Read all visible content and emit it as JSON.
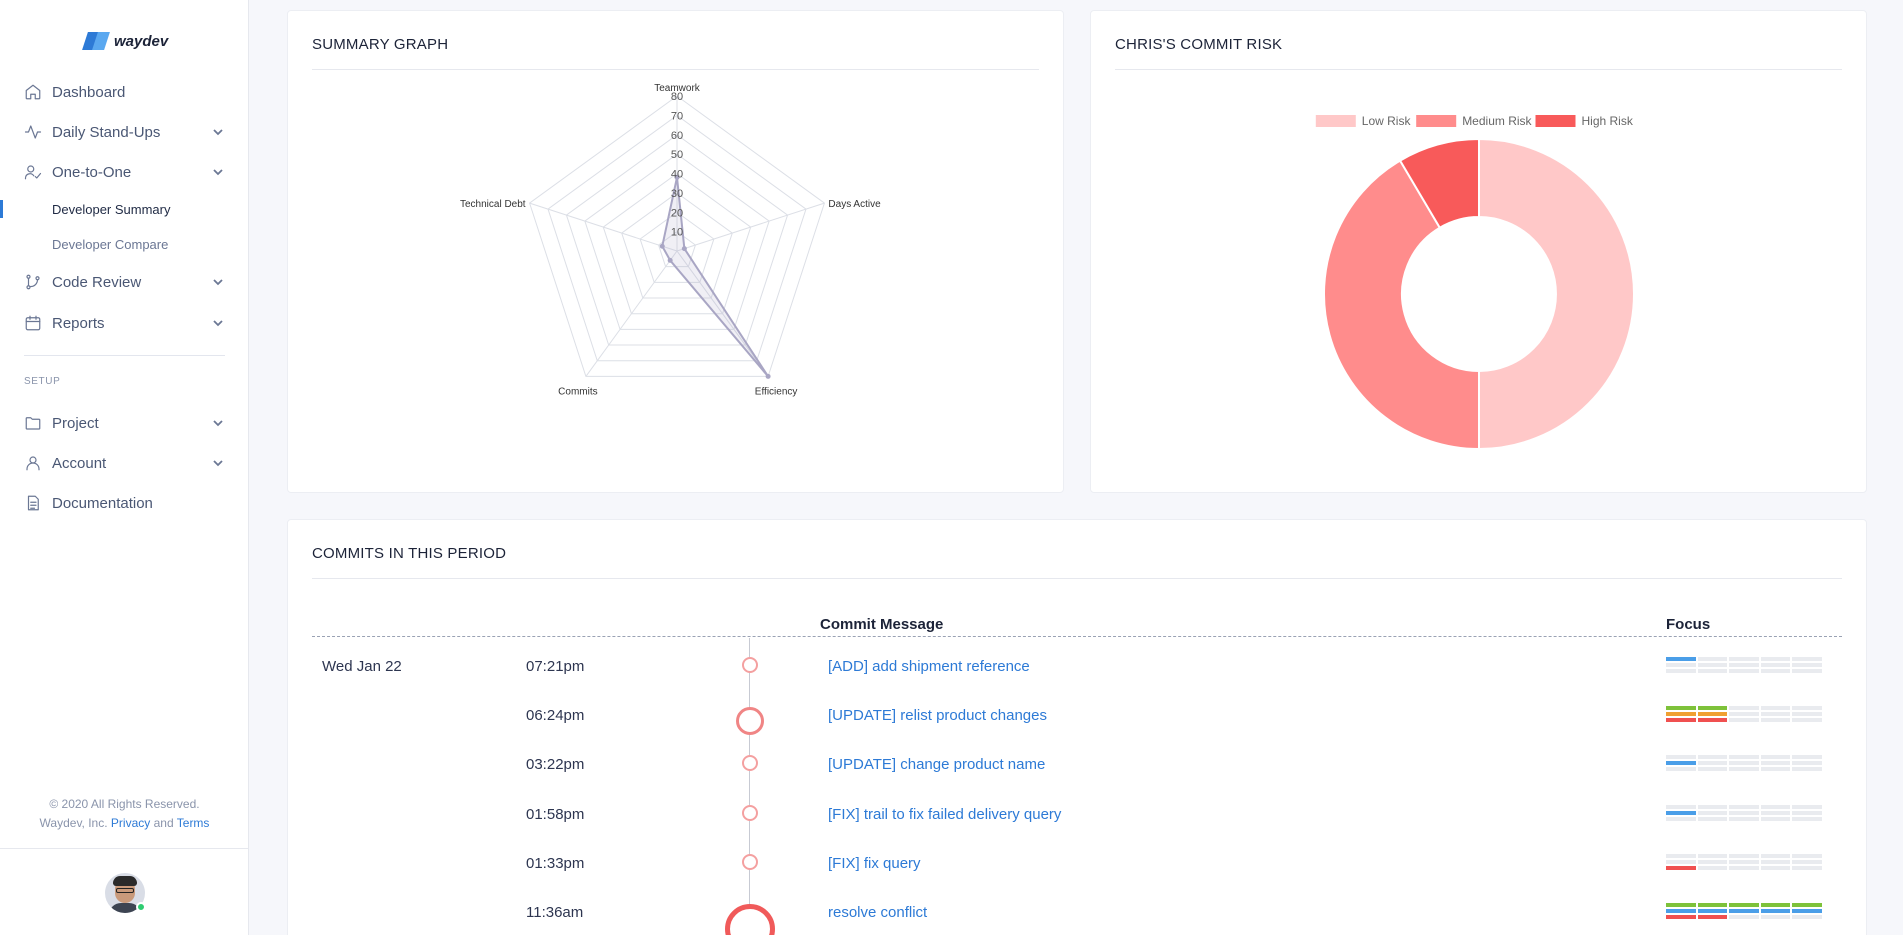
{
  "sidebar": {
    "logo_text": "waydev",
    "nav": [
      {
        "label": "Dashboard"
      },
      {
        "label": "Daily Stand-Ups"
      },
      {
        "label": "One-to-One"
      },
      {
        "label": "Code Review"
      },
      {
        "label": "Reports"
      }
    ],
    "one_to_one_sub": [
      "Developer Summary",
      "Developer Compare"
    ],
    "setup_label": "SETUP",
    "setup_nav": [
      {
        "label": "Project"
      },
      {
        "label": "Account"
      },
      {
        "label": "Documentation"
      }
    ],
    "footer": {
      "line1": "© 2020 All Rights Reserved.",
      "line2_prefix": "Waydev, Inc.",
      "privacy": "Privacy",
      "and": "and",
      "terms": "Terms"
    }
  },
  "summary": {
    "title": "SUMMARY GRAPH",
    "chart_data": {
      "type": "radar",
      "axes": [
        "Teamwork",
        "Days Active",
        "Efficiency",
        "Commits",
        "Technical Debt"
      ],
      "ticks": [
        10,
        20,
        30,
        40,
        50,
        60,
        70,
        80
      ],
      "range": [
        0,
        80
      ],
      "values": [
        38,
        4,
        80,
        6,
        8
      ]
    }
  },
  "risk": {
    "title": "CHRIS'S COMMIT RISK",
    "chart_data": {
      "type": "pie",
      "labels": [
        "Low Risk",
        "Medium Risk",
        "High Risk"
      ],
      "values": [
        50,
        41.5,
        8.5
      ],
      "colors": [
        "#ffc8c8",
        "#ff8c8c",
        "#f85a5a"
      ],
      "legend": "top"
    }
  },
  "commits": {
    "title": "COMMITS IN THIS PERIOD",
    "col_message": "Commit Message",
    "col_focus": "Focus",
    "rows": [
      {
        "date": "Wed Jan 22",
        "time": "07:21pm",
        "message": "[ADD] add shipment reference",
        "dot": "small",
        "focus": [
          [
            "blue",
            0,
            0,
            0,
            0
          ],
          [
            0,
            0,
            0,
            0,
            0
          ],
          [
            0,
            0,
            0,
            0,
            0
          ]
        ]
      },
      {
        "date": "",
        "time": "06:24pm",
        "message": "[UPDATE] relist product changes",
        "dot": "medium",
        "focus": [
          [
            "green",
            "green",
            0,
            0,
            0
          ],
          [
            "orange",
            "orange",
            0,
            0,
            0
          ],
          [
            "red",
            "red",
            0,
            0,
            0
          ]
        ]
      },
      {
        "date": "",
        "time": "03:22pm",
        "message": "[UPDATE] change product name",
        "dot": "small",
        "focus": [
          [
            0,
            0,
            0,
            0,
            0
          ],
          [
            "blue",
            0,
            0,
            0,
            0
          ],
          [
            0,
            0,
            0,
            0,
            0
          ]
        ]
      },
      {
        "date": "",
        "time": "01:58pm",
        "message": "[FIX] trail to fix failed delivery query",
        "dot": "small",
        "focus": [
          [
            0,
            0,
            0,
            0,
            0
          ],
          [
            "blue",
            0,
            0,
            0,
            0
          ],
          [
            0,
            0,
            0,
            0,
            0
          ]
        ]
      },
      {
        "date": "",
        "time": "01:33pm",
        "message": "[FIX] fix query",
        "dot": "small",
        "focus": [
          [
            0,
            0,
            0,
            0,
            0
          ],
          [
            0,
            0,
            0,
            0,
            0
          ],
          [
            "red",
            0,
            0,
            0,
            0
          ]
        ]
      },
      {
        "date": "",
        "time": "11:36am",
        "message": "resolve conflict",
        "dot": "large",
        "focus": [
          [
            "green",
            "green",
            "green",
            "green",
            "green"
          ],
          [
            "blue",
            "blue",
            "blue",
            "blue",
            "blue"
          ],
          [
            "red",
            "red",
            0,
            0,
            0
          ]
        ]
      }
    ]
  },
  "colors": {
    "accent": "#2d7ad6",
    "focus_green": "#7ec23a",
    "focus_orange": "#f0a032",
    "focus_red": "#f05050",
    "focus_blue": "#4a9ee8"
  }
}
